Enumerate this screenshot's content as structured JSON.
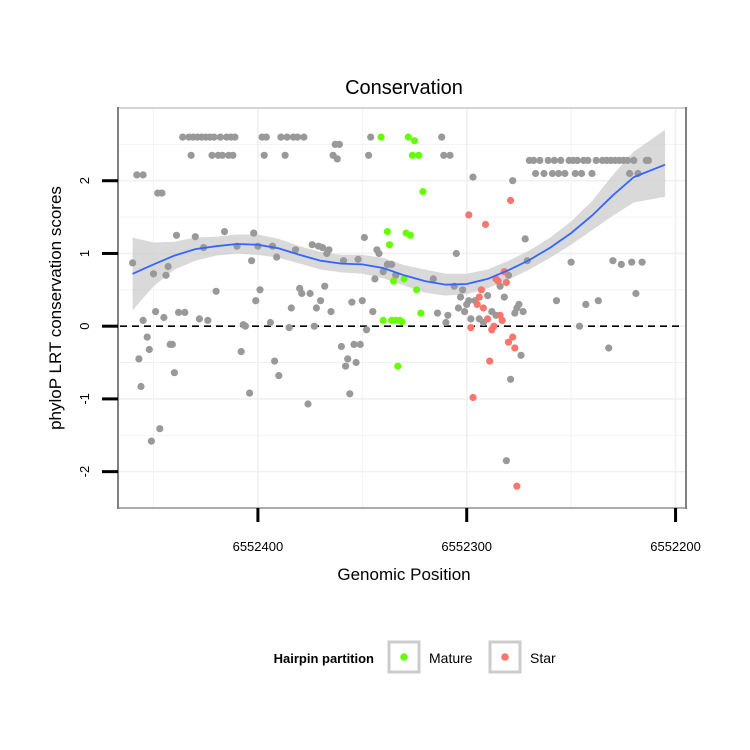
{
  "chart_data": {
    "type": "scatter",
    "title": "Conservation",
    "xlabel": "Genomic Position",
    "ylabel": "phyloP LRT conservation scores",
    "x_reversed": true,
    "xlim": [
      6552467,
      6552195
    ],
    "ylim": [
      -2.5,
      3.0
    ],
    "x_ticks": [
      6552400,
      6552300,
      6552200
    ],
    "x_tick_labels": [
      "6552400",
      "6552300",
      "6552200"
    ],
    "y_ticks": [
      -2,
      -1,
      0,
      1,
      2
    ],
    "y_tick_labels": [
      "-2",
      "-1",
      "0",
      "1",
      "2"
    ],
    "reference_line": {
      "y": 0,
      "style": "dashed",
      "color": "#000000"
    },
    "grid": true,
    "legend": {
      "title": "Hairpin partition",
      "placement": "bottom",
      "entries": [
        {
          "label": "Mature",
          "color": "#66ff00"
        },
        {
          "label": "Star",
          "color": "#f8766d"
        }
      ]
    },
    "colors": {
      "other": "#999999",
      "mature": "#66ff00",
      "star": "#f8766d",
      "smooth": "#3366ff",
      "band": "#cccccc"
    },
    "series": [
      {
        "name": "",
        "color": "#999999",
        "points": [
          [
            6552460,
            0.87
          ],
          [
            6552458,
            2.08
          ],
          [
            6552457,
            -0.45
          ],
          [
            6552456,
            -0.83
          ],
          [
            6552455,
            2.08
          ],
          [
            6552455,
            0.08
          ],
          [
            6552453,
            -0.15
          ],
          [
            6552452,
            -0.32
          ],
          [
            6552451,
            -1.58
          ],
          [
            6552450,
            0.72
          ],
          [
            6552449,
            0.2
          ],
          [
            6552448,
            1.83
          ],
          [
            6552447,
            -1.41
          ],
          [
            6552446,
            1.83
          ],
          [
            6552445,
            0.12
          ],
          [
            6552444,
            0.7
          ],
          [
            6552443,
            0.82
          ],
          [
            6552442,
            -0.25
          ],
          [
            6552441,
            -0.25
          ],
          [
            6552440,
            -0.64
          ],
          [
            6552439,
            1.25
          ],
          [
            6552438,
            0.19
          ],
          [
            6552436,
            2.6
          ],
          [
            6552435,
            0.19
          ],
          [
            6552433,
            2.6
          ],
          [
            6552432,
            2.35
          ],
          [
            6552431,
            2.6
          ],
          [
            6552430,
            1.23
          ],
          [
            6552429,
            2.6
          ],
          [
            6552428,
            0.1
          ],
          [
            6552427,
            2.6
          ],
          [
            6552426,
            1.08
          ],
          [
            6552425,
            2.6
          ],
          [
            6552424,
            0.08
          ],
          [
            6552423,
            2.6
          ],
          [
            6552422,
            2.35
          ],
          [
            6552421,
            2.6
          ],
          [
            6552420,
            0.48
          ],
          [
            6552419,
            2.35
          ],
          [
            6552418,
            2.6
          ],
          [
            6552417,
            2.35
          ],
          [
            6552416,
            1.3
          ],
          [
            6552415,
            2.6
          ],
          [
            6552414,
            2.35
          ],
          [
            6552413,
            2.6
          ],
          [
            6552412,
            2.35
          ],
          [
            6552411,
            2.6
          ],
          [
            6552410,
            1.1
          ],
          [
            6552408,
            -0.35
          ],
          [
            6552407,
            0.02
          ],
          [
            6552406,
            0.0
          ],
          [
            6552404,
            -0.92
          ],
          [
            6552403,
            0.9
          ],
          [
            6552402,
            1.28
          ],
          [
            6552401,
            0.35
          ],
          [
            6552400,
            1.1
          ],
          [
            6552399,
            0.5
          ],
          [
            6552398,
            2.6
          ],
          [
            6552397,
            2.35
          ],
          [
            6552396,
            2.6
          ],
          [
            6552394,
            0.05
          ],
          [
            6552393,
            1.1
          ],
          [
            6552392,
            -0.48
          ],
          [
            6552391,
            0.95
          ],
          [
            6552390,
            -0.68
          ],
          [
            6552389,
            2.6
          ],
          [
            6552387,
            2.35
          ],
          [
            6552386,
            2.6
          ],
          [
            6552385,
            -0.02
          ],
          [
            6552384,
            0.25
          ],
          [
            6552383,
            2.6
          ],
          [
            6552382,
            1.05
          ],
          [
            6552381,
            2.6
          ],
          [
            6552380,
            0.52
          ],
          [
            6552379,
            0.45
          ],
          [
            6552378,
            2.6
          ],
          [
            6552376,
            -1.07
          ],
          [
            6552375,
            0.45
          ],
          [
            6552374,
            1.12
          ],
          [
            6552373,
            0.0
          ],
          [
            6552372,
            0.25
          ],
          [
            6552371,
            1.1
          ],
          [
            6552370,
            0.35
          ],
          [
            6552369,
            1.08
          ],
          [
            6552368,
            0.55
          ],
          [
            6552367,
            1.0
          ],
          [
            6552366,
            1.05
          ],
          [
            6552365,
            0.2
          ],
          [
            6552364,
            2.35
          ],
          [
            6552363,
            2.5
          ],
          [
            6552362,
            2.3
          ],
          [
            6552361,
            2.5
          ],
          [
            6552360,
            -0.28
          ],
          [
            6552359,
            0.9
          ],
          [
            6552358,
            -0.55
          ],
          [
            6552357,
            -0.45
          ],
          [
            6552356,
            -0.93
          ],
          [
            6552355,
            0.33
          ],
          [
            6552354,
            -0.25
          ],
          [
            6552353,
            -0.5
          ],
          [
            6552352,
            0.92
          ],
          [
            6552351,
            -0.25
          ],
          [
            6552350,
            0.35
          ],
          [
            6552349,
            1.22
          ],
          [
            6552348,
            -0.05
          ],
          [
            6552347,
            2.35
          ],
          [
            6552346,
            2.6
          ],
          [
            6552345,
            0.2
          ],
          [
            6552344,
            0.65
          ],
          [
            6552343,
            1.05
          ],
          [
            6552342,
            1.0
          ],
          [
            6552340,
            0.75
          ],
          [
            6552338,
            0.85
          ],
          [
            6552336,
            0.85
          ],
          [
            6552334,
            0.7
          ],
          [
            6552316,
            0.65
          ],
          [
            6552314,
            0.18
          ],
          [
            6552312,
            2.6
          ],
          [
            6552311,
            2.35
          ],
          [
            6552310,
            0.05
          ],
          [
            6552309,
            0.15
          ],
          [
            6552308,
            2.35
          ],
          [
            6552306,
            0.55
          ],
          [
            6552305,
            1.0
          ],
          [
            6552304,
            0.25
          ],
          [
            6552303,
            0.4
          ],
          [
            6552302,
            0.5
          ],
          [
            6552301,
            0.2
          ],
          [
            6552300,
            0.3
          ],
          [
            6552299,
            0.35
          ],
          [
            6552298,
            0.1
          ],
          [
            6552297,
            2.05
          ],
          [
            6552296,
            0.35
          ],
          [
            6552294,
            0.1
          ],
          [
            6552292,
            0.05
          ],
          [
            6552290,
            0.42
          ],
          [
            6552288,
            0.2
          ],
          [
            6552286,
            0.15
          ],
          [
            6552284,
            0.55
          ],
          [
            6552282,
            0.4
          ],
          [
            6552281,
            -1.85
          ],
          [
            6552280,
            0.7
          ],
          [
            6552279,
            -0.73
          ],
          [
            6552278,
            2.0
          ],
          [
            6552277,
            0.18
          ],
          [
            6552276,
            0.25
          ],
          [
            6552275,
            0.3
          ],
          [
            6552274,
            -0.4
          ],
          [
            6552273,
            0.2
          ],
          [
            6552272,
            1.2
          ],
          [
            6552271,
            0.9
          ],
          [
            6552270,
            2.28
          ],
          [
            6552268,
            2.28
          ],
          [
            6552267,
            2.1
          ],
          [
            6552265,
            2.28
          ],
          [
            6552263,
            2.1
          ],
          [
            6552261,
            2.28
          ],
          [
            6552259,
            2.1
          ],
          [
            6552258,
            2.28
          ],
          [
            6552257,
            0.35
          ],
          [
            6552256,
            2.1
          ],
          [
            6552255,
            2.28
          ],
          [
            6552253,
            2.1
          ],
          [
            6552251,
            2.28
          ],
          [
            6552250,
            0.88
          ],
          [
            6552249,
            2.28
          ],
          [
            6552248,
            2.1
          ],
          [
            6552247,
            2.28
          ],
          [
            6552246,
            0.0
          ],
          [
            6552245,
            2.1
          ],
          [
            6552244,
            2.28
          ],
          [
            6552243,
            0.3
          ],
          [
            6552242,
            2.28
          ],
          [
            6552240,
            2.1
          ],
          [
            6552238,
            2.28
          ],
          [
            6552237,
            0.35
          ],
          [
            6552235,
            2.28
          ],
          [
            6552233,
            2.28
          ],
          [
            6552232,
            -0.3
          ],
          [
            6552231,
            2.28
          ],
          [
            6552230,
            0.9
          ],
          [
            6552229,
            2.28
          ],
          [
            6552227,
            2.28
          ],
          [
            6552226,
            0.85
          ],
          [
            6552225,
            2.28
          ],
          [
            6552223,
            2.28
          ],
          [
            6552222,
            2.1
          ],
          [
            6552221,
            0.88
          ],
          [
            6552220,
            2.28
          ],
          [
            6552219,
            0.45
          ],
          [
            6552218,
            2.1
          ],
          [
            6552216,
            0.88
          ],
          [
            6552214,
            2.28
          ],
          [
            6552213,
            2.28
          ]
        ]
      },
      {
        "name": "Mature",
        "color": "#66ff00",
        "points": [
          [
            6552340,
            0.08
          ],
          [
            6552338,
            1.3
          ],
          [
            6552337,
            1.12
          ],
          [
            6552336,
            0.08
          ],
          [
            6552335,
            0.62
          ],
          [
            6552334,
            0.08
          ],
          [
            6552333,
            -0.55
          ],
          [
            6552332,
            0.08
          ],
          [
            6552331,
            0.06
          ],
          [
            6552330,
            0.65
          ],
          [
            6552329,
            1.28
          ],
          [
            6552328,
            2.6
          ],
          [
            6552327,
            1.25
          ],
          [
            6552326,
            2.35
          ],
          [
            6552325,
            2.55
          ],
          [
            6552324,
            0.5
          ],
          [
            6552323,
            2.35
          ],
          [
            6552322,
            0.18
          ],
          [
            6552321,
            1.85
          ],
          [
            6552341,
            2.6
          ]
        ]
      },
      {
        "name": "Star",
        "color": "#f8766d",
        "points": [
          [
            6552299,
            1.53
          ],
          [
            6552298,
            -0.02
          ],
          [
            6552297,
            -0.98
          ],
          [
            6552295,
            0.3
          ],
          [
            6552294,
            0.4
          ],
          [
            6552293,
            0.5
          ],
          [
            6552292,
            0.25
          ],
          [
            6552291,
            1.4
          ],
          [
            6552290,
            0.1
          ],
          [
            6552289,
            -0.48
          ],
          [
            6552288,
            -0.05
          ],
          [
            6552287,
            0.0
          ],
          [
            6552286,
            0.65
          ],
          [
            6552285,
            0.62
          ],
          [
            6552284,
            0.15
          ],
          [
            6552283,
            0.08
          ],
          [
            6552282,
            0.75
          ],
          [
            6552281,
            0.6
          ],
          [
            6552280,
            -0.22
          ],
          [
            6552279,
            1.73
          ],
          [
            6552278,
            -0.15
          ],
          [
            6552277,
            -0.3
          ],
          [
            6552276,
            -2.2
          ]
        ]
      }
    ],
    "smooth_curve": [
      [
        6552460,
        0.72
      ],
      [
        6552450,
        0.85
      ],
      [
        6552440,
        0.97
      ],
      [
        6552430,
        1.06
      ],
      [
        6552420,
        1.1
      ],
      [
        6552410,
        1.13
      ],
      [
        6552400,
        1.12
      ],
      [
        6552390,
        1.07
      ],
      [
        6552380,
        0.98
      ],
      [
        6552370,
        0.9
      ],
      [
        6552360,
        0.86
      ],
      [
        6552350,
        0.85
      ],
      [
        6552340,
        0.8
      ],
      [
        6552330,
        0.7
      ],
      [
        6552320,
        0.62
      ],
      [
        6552310,
        0.57
      ],
      [
        6552300,
        0.58
      ],
      [
        6552290,
        0.65
      ],
      [
        6552280,
        0.77
      ],
      [
        6552270,
        0.91
      ],
      [
        6552260,
        1.08
      ],
      [
        6552250,
        1.28
      ],
      [
        6552240,
        1.52
      ],
      [
        6552230,
        1.8
      ],
      [
        6552220,
        2.05
      ],
      [
        6552205,
        2.22
      ]
    ],
    "smooth_band": [
      [
        6552460,
        0.22,
        1.22
      ],
      [
        6552450,
        0.55,
        1.15
      ],
      [
        6552440,
        0.78,
        1.16
      ],
      [
        6552430,
        0.9,
        1.22
      ],
      [
        6552420,
        0.97,
        1.23
      ],
      [
        6552410,
        1.0,
        1.26
      ],
      [
        6552400,
        0.98,
        1.26
      ],
      [
        6552390,
        0.94,
        1.2
      ],
      [
        6552380,
        0.86,
        1.1
      ],
      [
        6552370,
        0.78,
        1.02
      ],
      [
        6552360,
        0.74,
        0.98
      ],
      [
        6552350,
        0.72,
        0.98
      ],
      [
        6552340,
        0.66,
        0.94
      ],
      [
        6552330,
        0.56,
        0.84
      ],
      [
        6552320,
        0.46,
        0.78
      ],
      [
        6552310,
        0.42,
        0.72
      ],
      [
        6552300,
        0.44,
        0.72
      ],
      [
        6552290,
        0.52,
        0.78
      ],
      [
        6552280,
        0.64,
        0.9
      ],
      [
        6552270,
        0.78,
        1.04
      ],
      [
        6552260,
        0.94,
        1.22
      ],
      [
        6552250,
        1.12,
        1.44
      ],
      [
        6552240,
        1.32,
        1.72
      ],
      [
        6552230,
        1.52,
        2.08
      ],
      [
        6552220,
        1.7,
        2.4
      ],
      [
        6552205,
        1.78,
        2.7
      ]
    ]
  }
}
